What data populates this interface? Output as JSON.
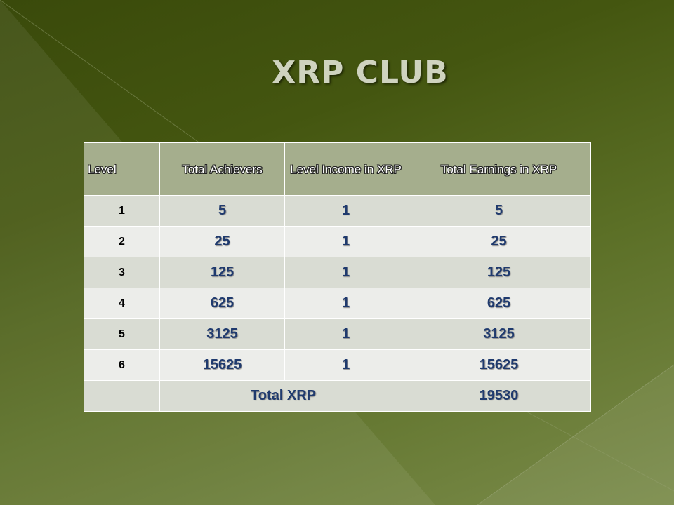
{
  "slide": {
    "title": "XRP CLUB"
  },
  "table": {
    "headers": {
      "level": "Level",
      "achievers": "Total Achievers",
      "income": "Level Income in XRP",
      "earnings": "Total Earnings in XRP"
    },
    "rows": [
      {
        "level": "1",
        "achievers": "5",
        "income": "1",
        "earnings": "5"
      },
      {
        "level": "2",
        "achievers": "25",
        "income": "1",
        "earnings": "25"
      },
      {
        "level": "3",
        "achievers": "125",
        "income": "1",
        "earnings": "125"
      },
      {
        "level": "4",
        "achievers": "625",
        "income": "1",
        "earnings": "625"
      },
      {
        "level": "5",
        "achievers": "3125",
        "income": "1",
        "earnings": "3125"
      },
      {
        "level": "6",
        "achievers": "15625",
        "income": "1",
        "earnings": "15625"
      }
    ],
    "total": {
      "label": "Total XRP",
      "value": "19530"
    }
  }
}
